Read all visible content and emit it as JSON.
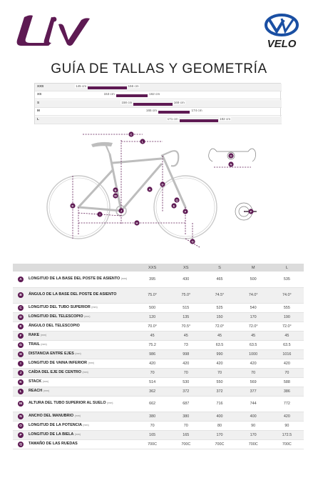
{
  "brand_colors": {
    "accent": "#5e1a53",
    "velo_blue": "#1a4fa3"
  },
  "logos": {
    "liv": "Liv",
    "velo": "VELO"
  },
  "title": "GUÍA DE TALLAS Y GEOMETRÍA",
  "size_chart": [
    {
      "size": "XXS",
      "min": "145 cm",
      "max": "156 cm",
      "min_cm": 145,
      "max_cm": 156
    },
    {
      "size": "XS",
      "min": "153 cm",
      "max": "162 cm",
      "min_cm": 153,
      "max_cm": 162
    },
    {
      "size": "S",
      "min": "158 cm",
      "max": "169 cm",
      "min_cm": 158,
      "max_cm": 169
    },
    {
      "size": "M",
      "min": "165 cm",
      "max": "174 cm",
      "min_cm": 165,
      "max_cm": 174
    },
    {
      "size": "L",
      "min": "171 cm",
      "max": "182 cm",
      "min_cm": 171,
      "max_cm": 182
    }
  ],
  "diagram_letters": [
    "A",
    "B",
    "C",
    "D",
    "E",
    "F",
    "G",
    "H",
    "I",
    "J",
    "K",
    "L",
    "M",
    "N",
    "O",
    "P",
    "Q"
  ],
  "table": {
    "sizes": [
      "XXS",
      "XS",
      "S",
      "M",
      "L"
    ],
    "rows": [
      {
        "letter": "A",
        "name": "LONGITUD DE LA BASE DEL POSTE DE ASIENTO",
        "unit": "(mm)",
        "values": [
          "395",
          "430",
          "465",
          "500",
          "535"
        ]
      },
      {
        "letter": "B",
        "name": "ÁNGULO DE LA BASE DEL POSTE DE ASIENTO",
        "unit": "",
        "values": [
          "75.0°",
          "75.0°",
          "74.5°",
          "74.0°",
          "74.0°"
        ]
      },
      {
        "letter": "C",
        "name": "LONGITUD DEL TUBO SUPERIOR",
        "unit": "(mm)",
        "values": [
          "500",
          "515",
          "525",
          "540",
          "555"
        ]
      },
      {
        "letter": "D",
        "name": "LONGITUD DEL TELESCOPIO",
        "unit": "(mm)",
        "values": [
          "120",
          "135",
          "150",
          "170",
          "190"
        ]
      },
      {
        "letter": "E",
        "name": "ÁNGULO DEL TELESCOPIO",
        "unit": "",
        "values": [
          "70.0°",
          "70.5°",
          "72.0°",
          "72.0°",
          "72.0°"
        ]
      },
      {
        "letter": "F",
        "name": "RAKE",
        "unit": "(mm)",
        "values": [
          "45",
          "45",
          "45",
          "45",
          "45"
        ]
      },
      {
        "letter": "G",
        "name": "TRAIL",
        "unit": "(mm)",
        "values": [
          "75.2",
          "73",
          "63.5",
          "63.5",
          "63.5"
        ]
      },
      {
        "letter": "H",
        "name": "DISTANCIA ENTRE EJES",
        "unit": "(mm)",
        "values": [
          "986",
          "998",
          "990",
          "1000",
          "1016"
        ]
      },
      {
        "letter": "I",
        "name": "LONGITUD DE VAINA INFERIOR",
        "unit": "(mm)",
        "values": [
          "420",
          "420",
          "420",
          "420",
          "420"
        ]
      },
      {
        "letter": "J",
        "name": "CAÍDA DEL EJE DE CENTRO",
        "unit": "(mm)",
        "values": [
          "70",
          "70",
          "70",
          "70",
          "70"
        ]
      },
      {
        "letter": "K",
        "name": "STACK",
        "unit": "(mm)",
        "values": [
          "514",
          "530",
          "550",
          "569",
          "588"
        ]
      },
      {
        "letter": "L",
        "name": "REACH",
        "unit": "(mm)",
        "values": [
          "362",
          "372",
          "372",
          "377",
          "386"
        ]
      },
      {
        "letter": "M",
        "name": "ALTURA DEL TUBO SUPERIOR AL SUELO",
        "unit": "(mm)",
        "values": [
          "662",
          "687",
          "716",
          "744",
          "772"
        ]
      },
      {
        "letter": "N",
        "name": "ANCHO DEL MANUBRIO",
        "unit": "(mm)",
        "values": [
          "380",
          "380",
          "400",
          "400",
          "420"
        ]
      },
      {
        "letter": "O",
        "name": "LONGITUD DE LA POTENCIA",
        "unit": "(mm)",
        "values": [
          "70",
          "70",
          "80",
          "90",
          "90"
        ]
      },
      {
        "letter": "P",
        "name": "LONGITUD DE LA BIELA",
        "unit": "(mm)",
        "values": [
          "165",
          "165",
          "170",
          "170",
          "172.5"
        ]
      },
      {
        "letter": "Q",
        "name": "TAMAÑO DE LAS RUEDAS",
        "unit": "",
        "values": [
          "700C",
          "700C",
          "700C",
          "700C",
          "700C"
        ]
      }
    ]
  }
}
